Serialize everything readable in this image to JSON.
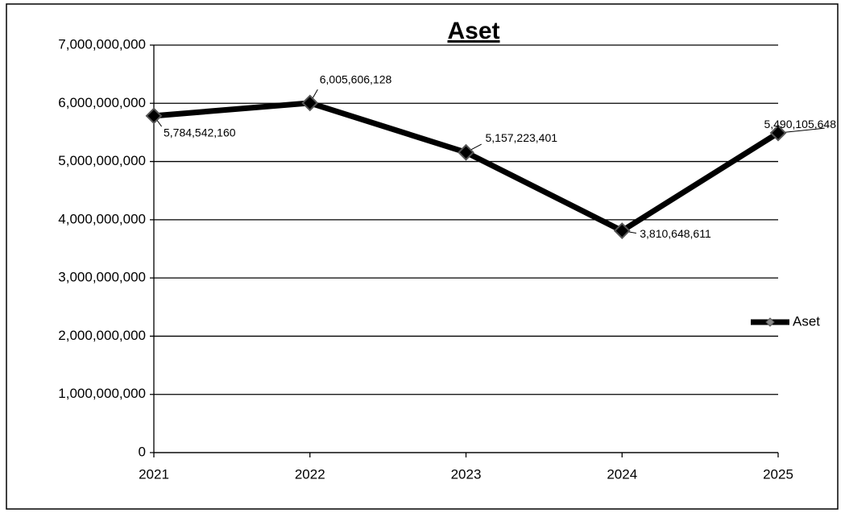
{
  "chart_data": {
    "type": "line",
    "title": "Aset",
    "categories": [
      "2021",
      "2022",
      "2023",
      "2024",
      "2025"
    ],
    "series": [
      {
        "name": "Aset",
        "color": "#000000",
        "values": [
          5784542160,
          6005606128,
          5157223401,
          3810648611,
          5490105648
        ],
        "value_labels": [
          "5,784,542,160",
          "6,005,606,128",
          "5,157,223,401",
          "3,810,648,611",
          "5,490,105,648"
        ]
      }
    ],
    "ylim": [
      0,
      7000000000
    ],
    "yticks": [
      0,
      {
        "value": 1000000000,
        "label": "1,000,000,000"
      },
      {
        "value": 2000000000,
        "label": "2,000,000,000"
      },
      {
        "value": 3000000000,
        "label": "3,000,000,000"
      },
      {
        "value": 4000000000,
        "label": "4,000,000,000"
      },
      {
        "value": 5000000000,
        "label": "5,000,000,000"
      },
      {
        "value": 6000000000,
        "label": "6,000,000,000"
      },
      {
        "value": 7000000000,
        "label": "7,000,000,000"
      }
    ],
    "grid": true,
    "legend": "right"
  }
}
